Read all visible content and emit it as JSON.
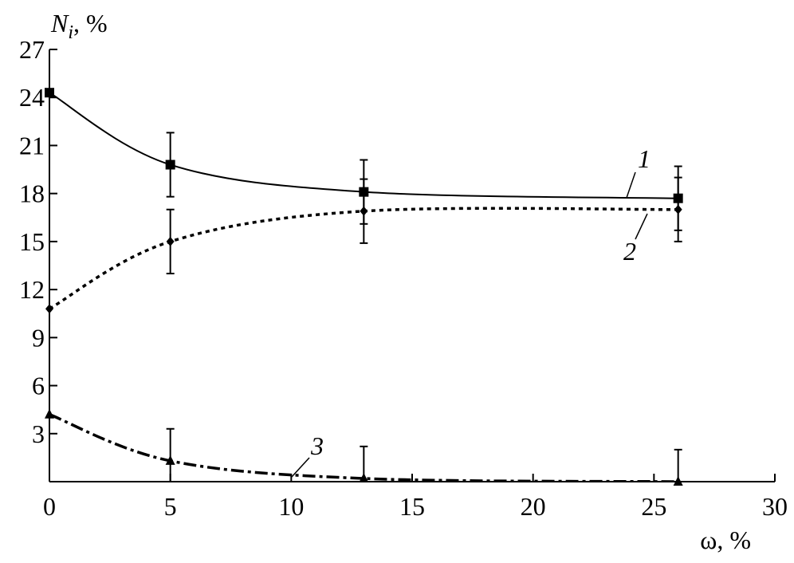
{
  "chart_data": {
    "type": "line",
    "ylabel": {
      "main": "N",
      "sub": "i",
      "unit": ", %"
    },
    "xlabel": "ω, %",
    "xlim": [
      0,
      30
    ],
    "xticks": [
      0,
      5,
      10,
      15,
      20,
      25,
      30
    ],
    "ylim": [
      0,
      27
    ],
    "yticks": [
      3,
      6,
      9,
      12,
      15,
      18,
      21,
      24,
      27
    ],
    "x": [
      0,
      5,
      13,
      26
    ],
    "series": [
      {
        "name": "1",
        "color": "#000000",
        "marker": "square",
        "style": "solid",
        "values": [
          24.3,
          19.8,
          18.1,
          17.7
        ],
        "errors": [
          null,
          2,
          2,
          2
        ]
      },
      {
        "name": "2",
        "color": "#000000",
        "marker": "diamond",
        "style": "dotted",
        "values": [
          10.8,
          15.0,
          16.9,
          17.0
        ],
        "errors": [
          null,
          2,
          2,
          2
        ]
      },
      {
        "name": "3",
        "color": "#000000",
        "marker": "triangle",
        "style": "dashdot",
        "values": [
          4.2,
          1.3,
          0.2,
          0
        ],
        "errors": [
          null,
          2,
          2,
          2
        ]
      }
    ]
  }
}
